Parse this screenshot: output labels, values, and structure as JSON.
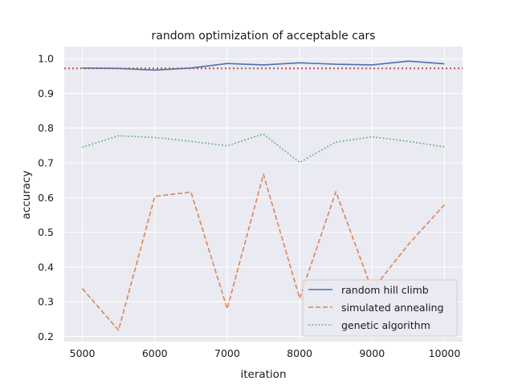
{
  "chart_data": {
    "type": "line",
    "title": "random optimization of acceptable cars",
    "xlabel": "iteration",
    "ylabel": "accuracy",
    "xlim": [
      4750,
      10250
    ],
    "ylim": [
      0.185,
      1.035
    ],
    "xticks": [
      5000,
      6000,
      7000,
      8000,
      9000,
      10000
    ],
    "yticks": [
      0.2,
      0.3,
      0.4,
      0.5,
      0.6,
      0.7,
      0.8,
      0.9,
      1.0
    ],
    "ytick_labels": [
      "0.2",
      "0.3",
      "0.4",
      "0.5",
      "0.6",
      "0.7",
      "0.8",
      "0.9",
      "1.0"
    ],
    "x": [
      5000,
      5500,
      6000,
      6500,
      7000,
      7500,
      8000,
      8500,
      9000,
      9500,
      10000
    ],
    "series": [
      {
        "name": "random hill climb",
        "style": "solid",
        "color": "#4c72b0",
        "values": [
          0.973,
          0.972,
          0.967,
          0.973,
          0.986,
          0.982,
          0.988,
          0.984,
          0.982,
          0.993,
          0.985
        ]
      },
      {
        "name": "simulated annealing",
        "style": "dashed",
        "color": "#dd8452",
        "values": [
          0.338,
          0.218,
          0.603,
          0.616,
          0.28,
          0.667,
          0.31,
          0.617,
          0.333,
          0.465,
          0.58
        ]
      },
      {
        "name": "genetic algorithm",
        "style": "dotted",
        "color": "#55a868",
        "values": [
          0.745,
          0.778,
          0.773,
          0.762,
          0.749,
          0.783,
          0.701,
          0.76,
          0.775,
          0.762,
          0.746
        ]
      }
    ],
    "hline": {
      "y": 0.972,
      "color": "#c44e52",
      "style": "dotted"
    },
    "legend_position": "lower-right",
    "grid": true
  }
}
